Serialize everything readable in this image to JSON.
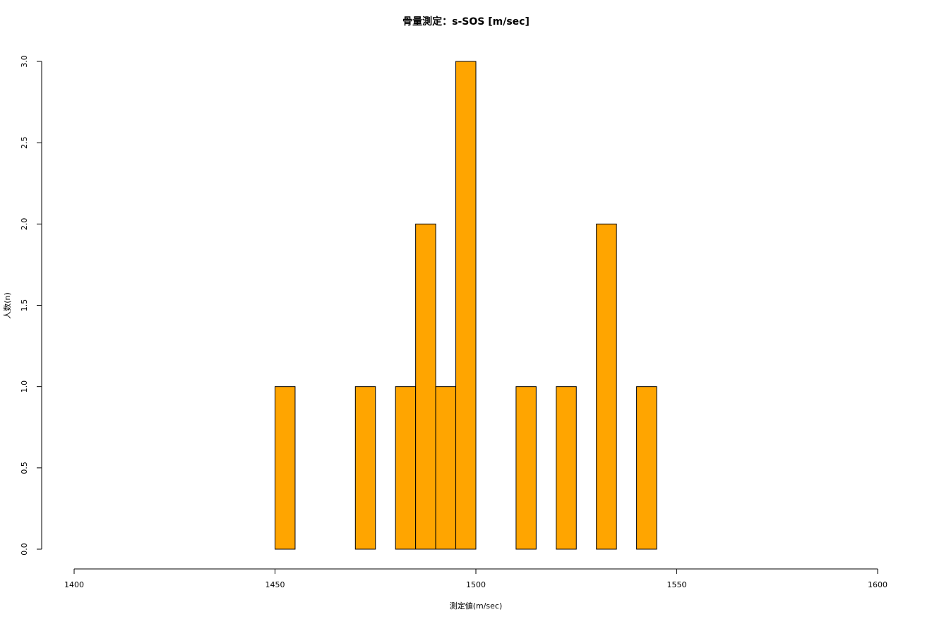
{
  "chart_data": {
    "type": "bar",
    "title": "骨量測定：s-SOS [m/sec]",
    "xlabel": "測定値(m/sec)",
    "ylabel": "人数(n)",
    "xlim": [
      1400,
      1600
    ],
    "ylim": [
      0,
      3
    ],
    "x_ticks": [
      "1400",
      "1450",
      "1500",
      "1550",
      "1600"
    ],
    "y_ticks": [
      "0.0",
      "0.5",
      "1.0",
      "1.5",
      "2.0",
      "2.5",
      "3.0"
    ],
    "bin_width": 5,
    "bins": [
      {
        "start": 1450,
        "end": 1455,
        "count": 1
      },
      {
        "start": 1455,
        "end": 1460,
        "count": 0
      },
      {
        "start": 1460,
        "end": 1465,
        "count": 0
      },
      {
        "start": 1465,
        "end": 1470,
        "count": 0
      },
      {
        "start": 1470,
        "end": 1475,
        "count": 1
      },
      {
        "start": 1475,
        "end": 1480,
        "count": 0
      },
      {
        "start": 1480,
        "end": 1485,
        "count": 1
      },
      {
        "start": 1485,
        "end": 1490,
        "count": 2
      },
      {
        "start": 1490,
        "end": 1495,
        "count": 1
      },
      {
        "start": 1495,
        "end": 1500,
        "count": 3
      },
      {
        "start": 1500,
        "end": 1505,
        "count": 0
      },
      {
        "start": 1505,
        "end": 1510,
        "count": 0
      },
      {
        "start": 1510,
        "end": 1515,
        "count": 1
      },
      {
        "start": 1515,
        "end": 1520,
        "count": 0
      },
      {
        "start": 1520,
        "end": 1525,
        "count": 1
      },
      {
        "start": 1525,
        "end": 1530,
        "count": 0
      },
      {
        "start": 1530,
        "end": 1535,
        "count": 2
      },
      {
        "start": 1535,
        "end": 1540,
        "count": 0
      },
      {
        "start": 1540,
        "end": 1545,
        "count": 1
      }
    ],
    "bar_color": "#FFA500",
    "grid": false,
    "legend": "none"
  }
}
